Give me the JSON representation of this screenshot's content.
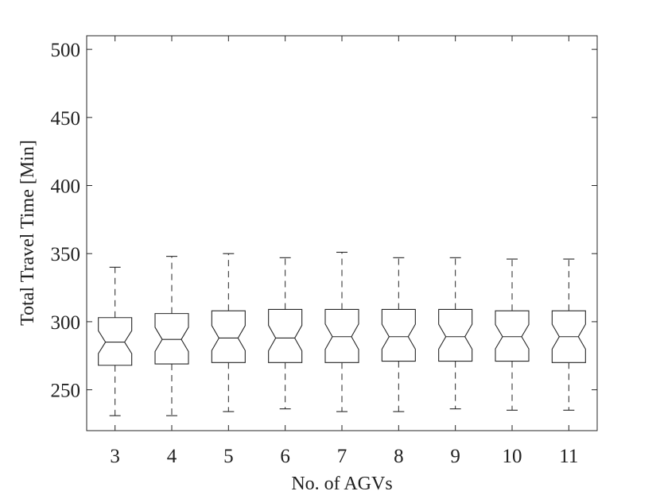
{
  "chart_data": {
    "type": "boxplot",
    "xlabel": "No. of AGVs",
    "ylabel": "Total Travel Time [Min]",
    "ylim": [
      220,
      510
    ],
    "yticks": [
      250,
      300,
      350,
      400,
      450,
      500
    ],
    "notched": true,
    "grid": false,
    "categories": [
      "3",
      "4",
      "5",
      "6",
      "7",
      "8",
      "9",
      "10",
      "11"
    ],
    "boxes": [
      {
        "category": "3",
        "whisker_low": 231,
        "q1": 268,
        "median": 285,
        "q3": 303,
        "whisker_high": 340
      },
      {
        "category": "4",
        "whisker_low": 231,
        "q1": 269,
        "median": 287,
        "q3": 306,
        "whisker_high": 348
      },
      {
        "category": "5",
        "whisker_low": 234,
        "q1": 270,
        "median": 288,
        "q3": 308,
        "whisker_high": 350
      },
      {
        "category": "6",
        "whisker_low": 236,
        "q1": 270,
        "median": 288,
        "q3": 309,
        "whisker_high": 347
      },
      {
        "category": "7",
        "whisker_low": 234,
        "q1": 270,
        "median": 289,
        "q3": 309,
        "whisker_high": 351
      },
      {
        "category": "8",
        "whisker_low": 234,
        "q1": 271,
        "median": 289,
        "q3": 309,
        "whisker_high": 347
      },
      {
        "category": "9",
        "whisker_low": 236,
        "q1": 271,
        "median": 289,
        "q3": 309,
        "whisker_high": 347
      },
      {
        "category": "10",
        "whisker_low": 235,
        "q1": 271,
        "median": 289,
        "q3": 308,
        "whisker_high": 346
      },
      {
        "category": "11",
        "whisker_low": 235,
        "q1": 270,
        "median": 289,
        "q3": 308,
        "whisker_high": 346
      }
    ]
  }
}
